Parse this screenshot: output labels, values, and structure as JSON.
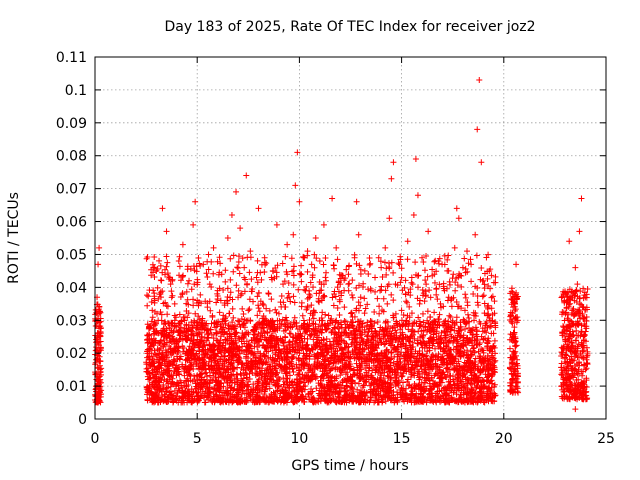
{
  "chart_data": {
    "type": "scatter",
    "title": "Day 183 of 2025, Rate Of TEC Index for receiver joz2",
    "xlabel": "GPS time / hours",
    "ylabel": "ROTI / TECUs",
    "xlim": [
      0,
      25
    ],
    "ylim": [
      0,
      0.11
    ],
    "xticks": [
      0,
      5,
      10,
      15,
      20,
      25
    ],
    "xtick_labels": [
      "0",
      "5",
      "10",
      "15",
      "20",
      "25"
    ],
    "yticks": [
      0,
      0.01,
      0.02,
      0.03,
      0.04,
      0.05,
      0.06,
      0.07,
      0.08,
      0.09,
      0.1,
      0.11
    ],
    "ytick_labels": [
      "0",
      "0.01",
      "0.02",
      "0.03",
      "0.04",
      "0.05",
      "0.06",
      "0.07",
      "0.08",
      "0.09",
      "0.1",
      "0.11"
    ],
    "grid": true,
    "marker": "+",
    "color": "#ff0000",
    "series": [
      {
        "points": [
          [
            0.05,
            0.018
          ],
          [
            0.1,
            0.025
          ],
          [
            0.15,
            0.012
          ],
          [
            0.2,
            0.032
          ],
          [
            0.25,
            0.015
          ],
          [
            0.1,
            0.037
          ],
          [
            0.2,
            0.052
          ],
          [
            0.15,
            0.047
          ],
          [
            0.05,
            0.009
          ],
          [
            0.25,
            0.021
          ],
          [
            0.1,
            0.006
          ],
          [
            0.2,
            0.028
          ],
          [
            2.6,
            0.012
          ],
          [
            2.7,
            0.022
          ],
          [
            2.8,
            0.033
          ],
          [
            2.9,
            0.015
          ],
          [
            3.0,
            0.045
          ],
          [
            3.1,
            0.026
          ],
          [
            3.2,
            0.038
          ],
          [
            3.3,
            0.064
          ],
          [
            3.4,
            0.018
          ],
          [
            3.5,
            0.057
          ],
          [
            3.6,
            0.029
          ],
          [
            3.7,
            0.041
          ],
          [
            3.8,
            0.011
          ],
          [
            3.9,
            0.035
          ],
          [
            4.0,
            0.024
          ],
          [
            4.1,
            0.048
          ],
          [
            4.2,
            0.019
          ],
          [
            4.3,
            0.053
          ],
          [
            4.4,
            0.031
          ],
          [
            4.5,
            0.014
          ],
          [
            4.6,
            0.042
          ],
          [
            4.7,
            0.027
          ],
          [
            4.8,
            0.059
          ],
          [
            4.9,
            0.066
          ],
          [
            5.0,
            0.036
          ],
          [
            5.1,
            0.013
          ],
          [
            5.2,
            0.025
          ],
          [
            5.3,
            0.047
          ],
          [
            5.4,
            0.021
          ],
          [
            5.5,
            0.034
          ],
          [
            5.6,
            0.011
          ],
          [
            5.7,
            0.029
          ],
          [
            5.8,
            0.052
          ],
          [
            5.9,
            0.017
          ],
          [
            6.0,
            0.039
          ],
          [
            6.1,
            0.023
          ],
          [
            6.2,
            0.044
          ],
          [
            6.3,
            0.015
          ],
          [
            6.4,
            0.031
          ],
          [
            6.5,
            0.055
          ],
          [
            6.6,
            0.026
          ],
          [
            6.7,
            0.062
          ],
          [
            6.8,
            0.019
          ],
          [
            6.9,
            0.069
          ],
          [
            7.0,
            0.037
          ],
          [
            7.1,
            0.058
          ],
          [
            7.2,
            0.022
          ],
          [
            7.3,
            0.046
          ],
          [
            7.4,
            0.074
          ],
          [
            7.5,
            0.033
          ],
          [
            7.6,
            0.051
          ],
          [
            7.7,
            0.014
          ],
          [
            7.8,
            0.028
          ],
          [
            7.9,
            0.043
          ],
          [
            8.0,
            0.064
          ],
          [
            8.1,
            0.018
          ],
          [
            8.2,
            0.035
          ],
          [
            8.3,
            0.049
          ],
          [
            8.4,
            0.024
          ],
          [
            8.5,
            0.038
          ],
          [
            8.6,
            0.012
          ],
          [
            8.7,
            0.045
          ],
          [
            8.8,
            0.027
          ],
          [
            8.9,
            0.059
          ],
          [
            9.0,
            0.032
          ],
          [
            9.1,
            0.016
          ],
          [
            9.2,
            0.041
          ],
          [
            9.3,
            0.025
          ],
          [
            9.4,
            0.053
          ],
          [
            9.5,
            0.037
          ],
          [
            9.6,
            0.011
          ],
          [
            9.7,
            0.056
          ],
          [
            9.8,
            0.071
          ],
          [
            9.9,
            0.081
          ],
          [
            10.0,
            0.066
          ],
          [
            10.1,
            0.044
          ],
          [
            10.2,
            0.028
          ],
          [
            10.3,
            0.039
          ],
          [
            10.4,
            0.051
          ],
          [
            10.5,
            0.019
          ],
          [
            10.6,
            0.047
          ],
          [
            10.7,
            0.033
          ],
          [
            10.8,
            0.055
          ],
          [
            10.9,
            0.022
          ],
          [
            11.0,
            0.048
          ],
          [
            11.1,
            0.036
          ],
          [
            11.2,
            0.059
          ],
          [
            11.3,
            0.042
          ],
          [
            11.4,
            0.014
          ],
          [
            11.5,
            0.029
          ],
          [
            11.6,
            0.067
          ],
          [
            11.7,
            0.038
          ],
          [
            11.8,
            0.052
          ],
          [
            11.9,
            0.023
          ],
          [
            12.0,
            0.041
          ],
          [
            12.1,
            0.017
          ],
          [
            12.2,
            0.034
          ],
          [
            12.3,
            0.026
          ],
          [
            12.4,
            0.044
          ],
          [
            12.5,
            0.013
          ],
          [
            12.6,
            0.031
          ],
          [
            12.7,
            0.049
          ],
          [
            12.8,
            0.066
          ],
          [
            12.9,
            0.056
          ],
          [
            13.0,
            0.037
          ],
          [
            13.1,
            0.021
          ],
          [
            13.2,
            0.045
          ],
          [
            13.3,
            0.028
          ],
          [
            13.4,
            0.012
          ],
          [
            13.5,
            0.039
          ],
          [
            13.6,
            0.024
          ],
          [
            13.7,
            0.043
          ],
          [
            13.8,
            0.018
          ],
          [
            13.9,
            0.032
          ],
          [
            14.0,
            0.046
          ],
          [
            14.1,
            0.027
          ],
          [
            14.2,
            0.052
          ],
          [
            14.3,
            0.035
          ],
          [
            14.4,
            0.061
          ],
          [
            14.5,
            0.073
          ],
          [
            14.6,
            0.078
          ],
          [
            14.7,
            0.041
          ],
          [
            14.8,
            0.022
          ],
          [
            14.9,
            0.047
          ],
          [
            15.0,
            0.033
          ],
          [
            15.1,
            0.015
          ],
          [
            15.2,
            0.038
          ],
          [
            15.3,
            0.054
          ],
          [
            15.4,
            0.029
          ],
          [
            15.5,
            0.043
          ],
          [
            15.6,
            0.062
          ],
          [
            15.7,
            0.079
          ],
          [
            15.8,
            0.068
          ],
          [
            15.9,
            0.036
          ],
          [
            16.0,
            0.049
          ],
          [
            16.1,
            0.023
          ],
          [
            16.2,
            0.041
          ],
          [
            16.3,
            0.057
          ],
          [
            16.4,
            0.031
          ],
          [
            16.5,
            0.018
          ],
          [
            16.6,
            0.044
          ],
          [
            16.7,
            0.026
          ],
          [
            16.8,
            0.048
          ],
          [
            16.9,
            0.035
          ],
          [
            17.0,
            0.014
          ],
          [
            17.1,
            0.039
          ],
          [
            17.2,
            0.022
          ],
          [
            17.3,
            0.045
          ],
          [
            17.4,
            0.031
          ],
          [
            17.5,
            0.017
          ],
          [
            17.6,
            0.052
          ],
          [
            17.7,
            0.064
          ],
          [
            17.8,
            0.061
          ],
          [
            17.9,
            0.028
          ],
          [
            18.0,
            0.046
          ],
          [
            18.1,
            0.033
          ],
          [
            18.2,
            0.051
          ],
          [
            18.3,
            0.024
          ],
          [
            18.4,
            0.047
          ],
          [
            18.5,
            0.038
          ],
          [
            18.6,
            0.056
          ],
          [
            18.7,
            0.088
          ],
          [
            18.8,
            0.103
          ],
          [
            18.9,
            0.078
          ],
          [
            19.0,
            0.042
          ],
          [
            19.1,
            0.029
          ],
          [
            19.2,
            0.034
          ],
          [
            19.3,
            0.021
          ],
          [
            19.4,
            0.013
          ],
          [
            19.5,
            0.026
          ],
          [
            20.4,
            0.012
          ],
          [
            20.5,
            0.024
          ],
          [
            20.55,
            0.035
          ],
          [
            20.6,
            0.047
          ],
          [
            20.65,
            0.018
          ],
          [
            20.5,
            0.009
          ],
          [
            20.6,
            0.031
          ],
          [
            22.9,
            0.011
          ],
          [
            23.0,
            0.024
          ],
          [
            23.1,
            0.037
          ],
          [
            23.2,
            0.054
          ],
          [
            23.3,
            0.019
          ],
          [
            23.4,
            0.029
          ],
          [
            23.5,
            0.046
          ],
          [
            23.6,
            0.041
          ],
          [
            23.7,
            0.057
          ],
          [
            23.8,
            0.067
          ],
          [
            23.9,
            0.034
          ],
          [
            24.0,
            0.015
          ],
          [
            23.5,
            0.003
          ],
          [
            23.6,
            0.022
          ]
        ]
      }
    ],
    "dense_bands": [
      {
        "x": [
          0.0,
          0.3
        ],
        "y": [
          0.005,
          0.035
        ],
        "n": 140
      },
      {
        "x": [
          2.5,
          19.6
        ],
        "y": [
          0.005,
          0.03
        ],
        "n": 3600
      },
      {
        "x": [
          2.5,
          19.6
        ],
        "y": [
          0.015,
          0.05
        ],
        "n": 1200
      },
      {
        "x": [
          20.3,
          20.7
        ],
        "y": [
          0.008,
          0.04
        ],
        "n": 130
      },
      {
        "x": [
          22.8,
          24.1
        ],
        "y": [
          0.006,
          0.04
        ],
        "n": 420
      }
    ]
  }
}
